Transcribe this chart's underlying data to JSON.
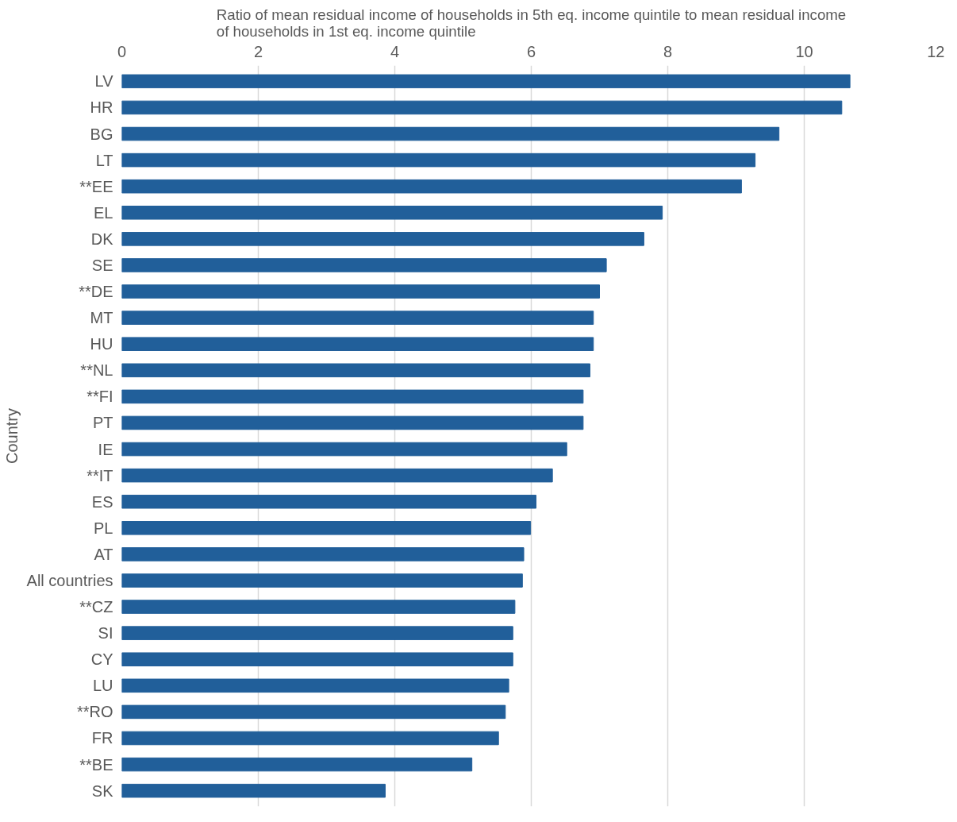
{
  "chart_data": {
    "type": "bar",
    "orientation": "horizontal",
    "title": "Ratio of mean residual income of households in 5th eq. income quintile to mean residual income of households in 1st eq. income quintile",
    "ylabel": "Country",
    "categories": [
      "LV",
      "HR",
      "BG",
      "LT",
      "**EE",
      "EL",
      "DK",
      "SE",
      "**DE",
      "MT",
      "HU",
      "**NL",
      "**FI",
      "PT",
      "IE",
      "**IT",
      "ES",
      "PL",
      "AT",
      "All countries",
      "**CZ",
      "SI",
      "CY",
      "LU",
      "**RO",
      "FR",
      "**BE",
      "SK"
    ],
    "values": [
      10.67,
      10.55,
      9.63,
      9.28,
      9.08,
      7.92,
      7.65,
      7.1,
      7.0,
      6.91,
      6.91,
      6.86,
      6.76,
      6.76,
      6.52,
      6.31,
      6.07,
      5.99,
      5.89,
      5.87,
      5.76,
      5.73,
      5.73,
      5.67,
      5.62,
      5.52,
      5.13,
      3.86
    ],
    "color": "#215f9a",
    "xlim": [
      0,
      12
    ],
    "xticks": [
      0,
      2,
      4,
      6,
      8,
      10,
      12
    ],
    "grid": "x"
  }
}
